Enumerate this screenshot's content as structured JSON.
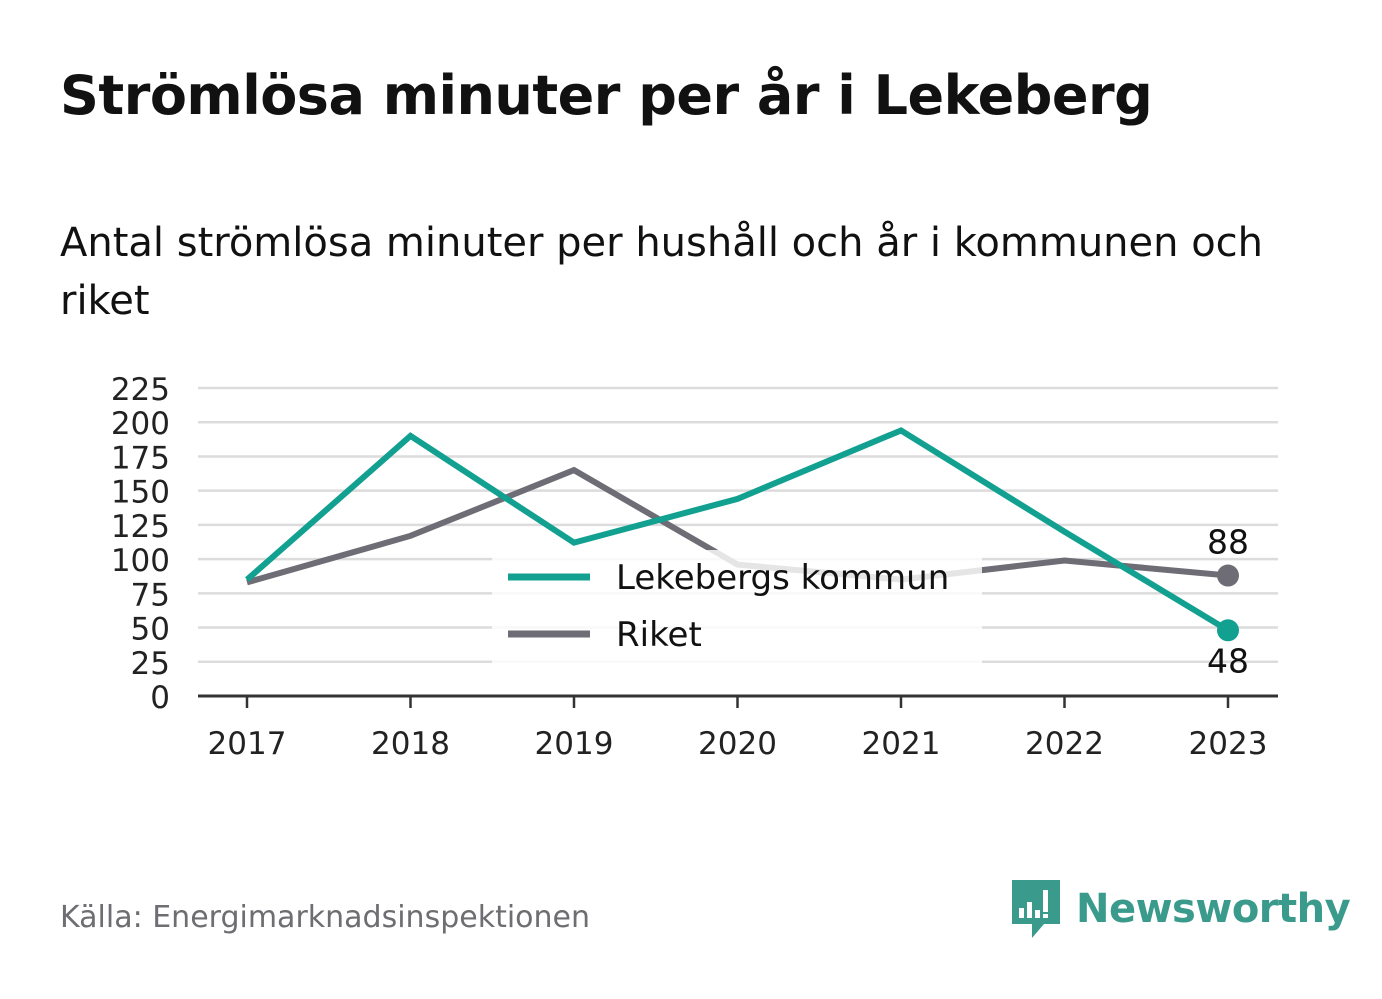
{
  "header": {
    "title": "Strömlösa minuter per år i Lekeberg",
    "subtitle": "Antal strömlösa minuter per hushåll och år i kommunen och riket"
  },
  "footer": {
    "source": "Källa: Energimarknadsinspektionen",
    "brand": "Newsworthy",
    "brand_icon": "bar-chart-speech-bubble-icon"
  },
  "colors": {
    "lekeberg": "#12a091",
    "riket": "#6e6d76",
    "grid": "#dcdcdc",
    "axis": "#333333",
    "brand": "#3a9a8c"
  },
  "chart_data": {
    "type": "line",
    "x": [
      "2017",
      "2018",
      "2019",
      "2020",
      "2021",
      "2022",
      "2023"
    ],
    "y_ticks": [
      0,
      25,
      50,
      75,
      100,
      125,
      150,
      175,
      200,
      225
    ],
    "ylim": [
      0,
      225
    ],
    "grid": true,
    "legend_position": "center",
    "series": [
      {
        "name": "Lekebergs kommun",
        "values": [
          85,
          190,
          112,
          144,
          194,
          120,
          48
        ],
        "end_label": "48"
      },
      {
        "name": "Riket",
        "values": [
          83,
          117,
          165,
          96,
          85,
          99,
          88
        ],
        "end_label": "88"
      }
    ]
  }
}
